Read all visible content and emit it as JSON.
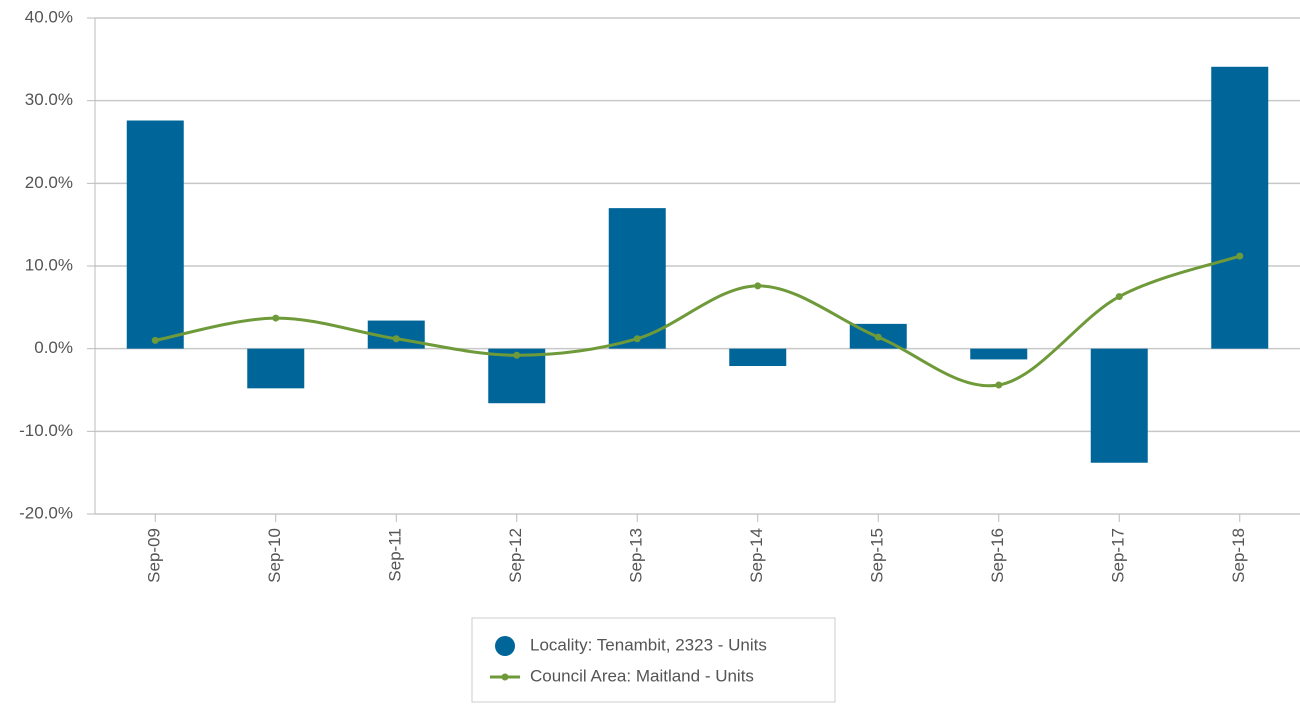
{
  "chart_data": {
    "type": "combo",
    "categories": [
      "Sep-09",
      "Sep-10",
      "Sep-11",
      "Sep-12",
      "Sep-13",
      "Sep-14",
      "Sep-15",
      "Sep-16",
      "Sep-17",
      "Sep-18"
    ],
    "series": [
      {
        "name": "Locality: Tenambit, 2323 - Units",
        "type": "bar",
        "color": "#00669a",
        "values": [
          27.6,
          -4.8,
          3.4,
          -6.6,
          17.0,
          -2.1,
          3.0,
          -1.3,
          -13.8,
          34.1
        ]
      },
      {
        "name": "Council Area: Maitland - Units",
        "type": "line",
        "color": "#6f9a3a",
        "values": [
          1.0,
          3.7,
          1.2,
          -0.8,
          1.2,
          7.6,
          1.4,
          -4.4,
          6.3,
          11.2
        ]
      }
    ],
    "ylim": [
      -20,
      40
    ],
    "yticks": [
      {
        "value": -20,
        "label": "-20.0%"
      },
      {
        "value": -10,
        "label": "-10.0%"
      },
      {
        "value": 0,
        "label": "0.0%"
      },
      {
        "value": 10,
        "label": "10.0%"
      },
      {
        "value": 20,
        "label": "20.0%"
      },
      {
        "value": 30,
        "label": "30.0%"
      },
      {
        "value": 40,
        "label": "40.0%"
      }
    ],
    "grid": true,
    "legend": "bottom"
  }
}
